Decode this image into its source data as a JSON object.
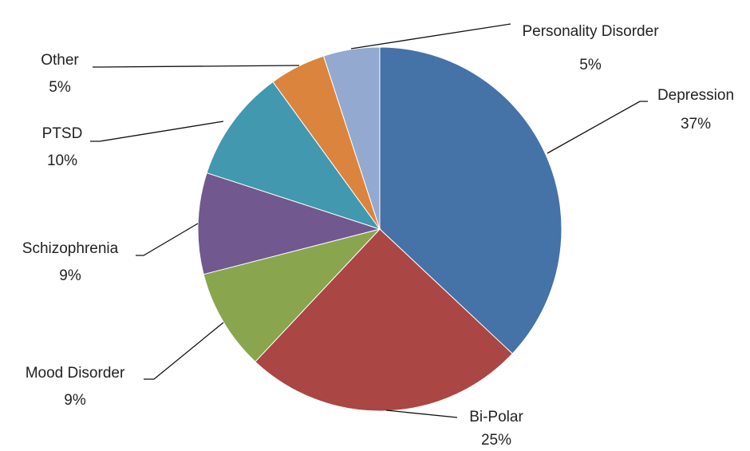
{
  "chart_data": {
    "type": "pie",
    "categories": [
      "Depression",
      "Bi-Polar",
      "Mood Disorder",
      "Schizophrenia",
      "PTSD",
      "Other",
      "Personality Disorder"
    ],
    "values": [
      37,
      25,
      9,
      9,
      10,
      5,
      5
    ],
    "value_labels": [
      "37%",
      "25%",
      "9%",
      "9%",
      "10%",
      "5%",
      "5%"
    ],
    "colors": [
      "#4572a7",
      "#aa4643",
      "#89a54e",
      "#71588f",
      "#4198af",
      "#db843d",
      "#93a9cf"
    ]
  }
}
